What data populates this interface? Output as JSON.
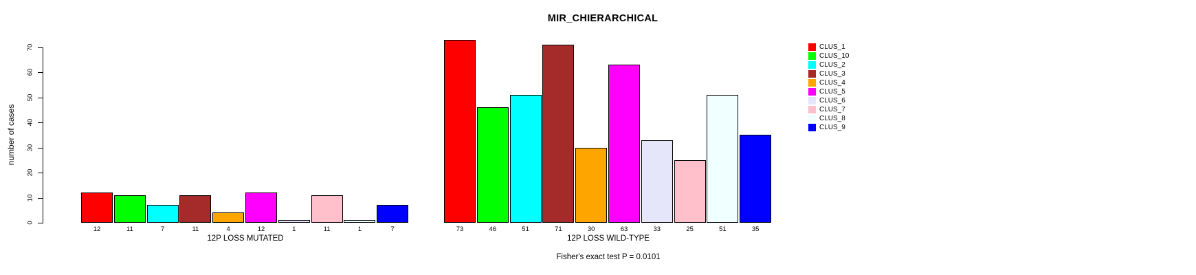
{
  "title": "MIR_CHIERARCHICAL",
  "footer": "Fisher's exact test P = 0.0101",
  "axis": {
    "ylabel": "number of cases",
    "ticks": [
      0,
      10,
      20,
      30,
      40,
      50,
      60,
      70
    ]
  },
  "legend": {
    "entries": [
      {
        "label": "CLUS_1",
        "color": "#FF0000"
      },
      {
        "label": "CLUS_10",
        "color": "#00FF00"
      },
      {
        "label": "CLUS_2",
        "color": "#00FFFF"
      },
      {
        "label": "CLUS_3",
        "color": "#A52A2A"
      },
      {
        "label": "CLUS_4",
        "color": "#FFA500"
      },
      {
        "label": "CLUS_5",
        "color": "#FF00FF"
      },
      {
        "label": "CLUS_6",
        "color": "#E6E6FA"
      },
      {
        "label": "CLUS_7",
        "color": "#FFC0CB"
      },
      {
        "label": "CLUS_8",
        "color": "#F0FFFF"
      },
      {
        "label": "CLUS_9",
        "color": "#0000FF"
      }
    ]
  },
  "chart_data": {
    "type": "bar",
    "title": "MIR_CHIERARCHICAL",
    "xlabel": "",
    "ylabel": "number of cases",
    "ylim": [
      0,
      70
    ],
    "grid": false,
    "legend_position": "right",
    "annotation": "Fisher's exact test P = 0.0101",
    "series_names": [
      "CLUS_1",
      "CLUS_10",
      "CLUS_2",
      "CLUS_3",
      "CLUS_4",
      "CLUS_5",
      "CLUS_6",
      "CLUS_7",
      "CLUS_8",
      "CLUS_9"
    ],
    "series_colors": [
      "#FF0000",
      "#00FF00",
      "#00FFFF",
      "#A52A2A",
      "#FFA500",
      "#FF00FF",
      "#E6E6FA",
      "#FFC0CB",
      "#F0FFFF",
      "#0000FF"
    ],
    "groups": [
      {
        "label": "12P LOSS MUTATED",
        "values": [
          12,
          11,
          7,
          11,
          4,
          12,
          1,
          11,
          1,
          7
        ]
      },
      {
        "label": "12P LOSS WILD-TYPE",
        "values": [
          73,
          46,
          51,
          71,
          30,
          63,
          33,
          25,
          51,
          35
        ]
      }
    ]
  }
}
